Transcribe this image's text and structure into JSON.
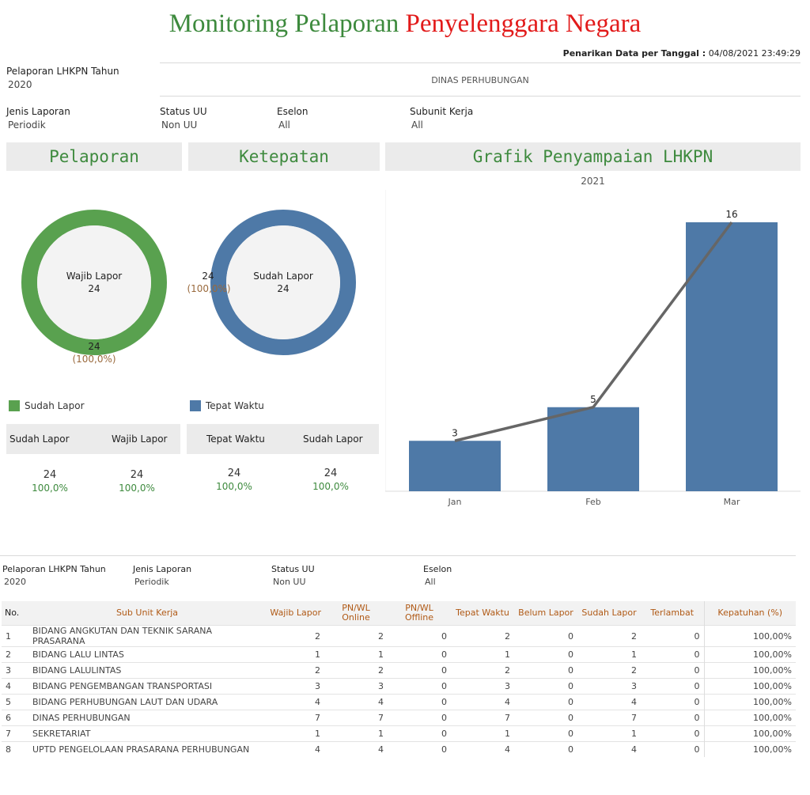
{
  "header": {
    "title_part1": "Monitoring Pelaporan",
    "title_part2": "Penyelenggara Negara",
    "timestamp_label": "Penarikan Data per Tanggal :",
    "timestamp_value": "04/08/2021 23:49:29"
  },
  "filters": {
    "tahun_label": "Pelaporan LHKPN Tahun",
    "tahun_value": "2020",
    "instansi": "DINAS PERHUBUNGAN",
    "jenis_label": "Jenis Laporan",
    "jenis_value": "Periodik",
    "status_label": "Status UU",
    "status_value": "Non UU",
    "eselon_label": "Eselon",
    "eselon_value": "All",
    "subunit_label": "Subunit Kerja",
    "subunit_value": "All"
  },
  "pelaporan": {
    "title": "Pelaporan",
    "center_label": "Wajib Lapor",
    "center_value": "24",
    "ring_value": "24",
    "ring_pct": "(100,0%)",
    "fraction": 1.0,
    "color": "#59a14f",
    "legend": "Sudah Lapor",
    "kpi_col1": "Sudah Lapor",
    "kpi_col2": "Wajib Lapor",
    "kpi_val1": "24",
    "kpi_pct1": "100,0%",
    "kpi_val2": "24",
    "kpi_pct2": "100,0%"
  },
  "ketepatan": {
    "title": "Ketepatan",
    "center_label": "Sudah Lapor",
    "center_value": "24",
    "ring_value": "24",
    "ring_pct": "(100,0%)",
    "fraction": 1.0,
    "color": "#4e79a7",
    "legend": "Tepat Waktu",
    "kpi_col1": "Tepat Waktu",
    "kpi_col2": "Sudah Lapor",
    "kpi_val1": "24",
    "kpi_pct1": "100,0%",
    "kpi_val2": "24",
    "kpi_pct2": "100,0%"
  },
  "chart_data": {
    "type": "bar",
    "title": "Grafik Penyampaian LHKPN",
    "subtitle": "2021",
    "categories": [
      "Jan",
      "Feb",
      "Mar"
    ],
    "values": [
      3,
      5,
      16
    ],
    "ylim": [
      0,
      16
    ],
    "bar_color": "#4e79a7",
    "line_color": "#666666",
    "grid": false
  },
  "table_filters": {
    "tahun_label": "Pelaporan LHKPN Tahun",
    "tahun_value": "2020",
    "jenis_label": "Jenis Laporan",
    "jenis_value": "Periodik",
    "status_label": "Status UU",
    "status_value": "Non UU",
    "eselon_label": "Eselon",
    "eselon_value": "All"
  },
  "table": {
    "headers": [
      "No.",
      "Sub Unit Kerja",
      "Wajib Lapor",
      "PN/WL Online",
      "PN/WL Offline",
      "Tepat Waktu",
      "Belum Lapor",
      "Sudah Lapor",
      "Terlambat",
      "Kepatuhan (%)"
    ],
    "rows": [
      [
        "1",
        "BIDANG ANGKUTAN DAN TEKNIK SARANA PRASARANA",
        "2",
        "2",
        "0",
        "2",
        "0",
        "2",
        "0",
        "100,00%"
      ],
      [
        "2",
        "BIDANG LALU LINTAS",
        "1",
        "1",
        "0",
        "1",
        "0",
        "1",
        "0",
        "100,00%"
      ],
      [
        "3",
        "BIDANG LALULINTAS",
        "2",
        "2",
        "0",
        "2",
        "0",
        "2",
        "0",
        "100,00%"
      ],
      [
        "4",
        "BIDANG PENGEMBANGAN TRANSPORTASI",
        "3",
        "3",
        "0",
        "3",
        "0",
        "3",
        "0",
        "100,00%"
      ],
      [
        "5",
        "BIDANG PERHUBUNGAN LAUT DAN UDARA",
        "4",
        "4",
        "0",
        "4",
        "0",
        "4",
        "0",
        "100,00%"
      ],
      [
        "6",
        "DINAS PERHUBUNGAN",
        "7",
        "7",
        "0",
        "7",
        "0",
        "7",
        "0",
        "100,00%"
      ],
      [
        "7",
        "SEKRETARIAT",
        "1",
        "1",
        "0",
        "1",
        "0",
        "1",
        "0",
        "100,00%"
      ],
      [
        "8",
        "UPTD PENGELOLAAN PRASARANA PERHUBUNGAN",
        "4",
        "4",
        "0",
        "4",
        "0",
        "4",
        "0",
        "100,00%"
      ]
    ]
  }
}
